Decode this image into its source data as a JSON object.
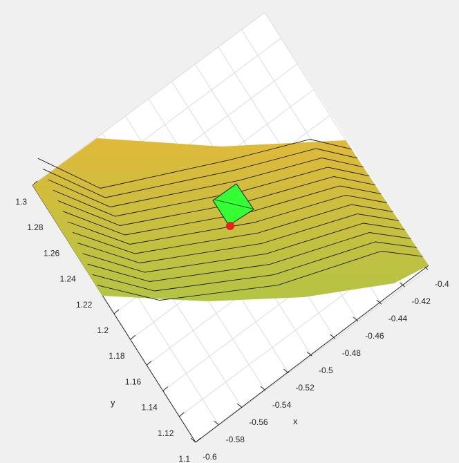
{
  "chart_data": {
    "type": "surface",
    "view": "3d-rotated",
    "xlabel": "x",
    "ylabel": "y",
    "zlabel": "",
    "title": "",
    "grid": true,
    "xlim": [
      -0.6,
      -0.4
    ],
    "ylim": [
      1.1,
      1.3
    ],
    "x_ticks": [
      "-0.6",
      "-0.58",
      "-0.56",
      "-0.54",
      "-0.52",
      "-0.5",
      "-0.48",
      "-0.46",
      "-0.44",
      "-0.42",
      "-0.4"
    ],
    "y_ticks": [
      "1.1",
      "1.12",
      "1.14",
      "1.16",
      "1.18",
      "1.2",
      "1.22",
      "1.24",
      "1.26",
      "1.28",
      "1.3"
    ],
    "surface_contour_lines": 13,
    "colors": {
      "surface_top": "#e0b93a",
      "surface_bottom": "#b4c444",
      "contour": "#1a1a1a",
      "marker_square": "#33ff33",
      "marker_point": "#e8201e",
      "background": "#f0f0f0",
      "plot_area": "#ffffff",
      "grid": "#dcdcdc",
      "axis": "#262626"
    }
  }
}
